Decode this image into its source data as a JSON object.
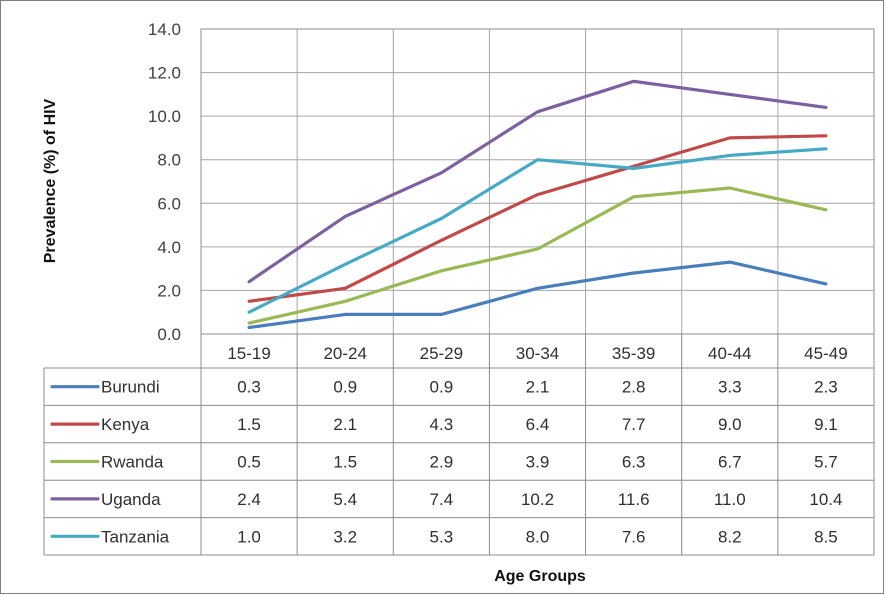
{
  "chart_data": {
    "type": "line",
    "title": "",
    "xlabel": "Age Groups",
    "ylabel": "Prevalence (%) of HIV",
    "ylim": [
      0,
      14
    ],
    "yticks": [
      "0.0",
      "2.0",
      "4.0",
      "6.0",
      "8.0",
      "10.0",
      "12.0",
      "14.0"
    ],
    "grid": true,
    "legend": "data-table",
    "categories": [
      "15-19",
      "20-24",
      "25-29",
      "30-34",
      "35-39",
      "40-44",
      "45-49"
    ],
    "series": [
      {
        "name": "Burundi",
        "color": "#4a7ebb",
        "values": [
          0.3,
          0.9,
          0.9,
          2.1,
          2.8,
          3.3,
          2.3
        ],
        "labels": [
          "0.3",
          "0.9",
          "0.9",
          "2.1",
          "2.8",
          "3.3",
          "2.3"
        ]
      },
      {
        "name": "Kenya",
        "color": "#be4b48",
        "values": [
          1.5,
          2.1,
          4.3,
          6.4,
          7.7,
          9.0,
          9.1
        ],
        "labels": [
          "1.5",
          "2.1",
          "4.3",
          "6.4",
          "7.7",
          "9.0",
          "9.1"
        ]
      },
      {
        "name": "Rwanda",
        "color": "#98b954",
        "values": [
          0.5,
          1.5,
          2.9,
          3.9,
          6.3,
          6.7,
          5.7
        ],
        "labels": [
          "0.5",
          "1.5",
          "2.9",
          "3.9",
          "6.3",
          "6.7",
          "5.7"
        ]
      },
      {
        "name": "Uganda",
        "color": "#7d60a0",
        "values": [
          2.4,
          5.4,
          7.4,
          10.2,
          11.6,
          11.0,
          10.4
        ],
        "labels": [
          "2.4",
          "5.4",
          "7.4",
          "10.2",
          "11.6",
          "11.0",
          "10.4"
        ]
      },
      {
        "name": "Tanzania",
        "color": "#46aac5",
        "values": [
          1.0,
          3.2,
          5.3,
          8.0,
          7.6,
          8.2,
          8.5
        ],
        "labels": [
          "1.0",
          "3.2",
          "5.3",
          "8.0",
          "7.6",
          "8.2",
          "8.5"
        ]
      }
    ]
  }
}
